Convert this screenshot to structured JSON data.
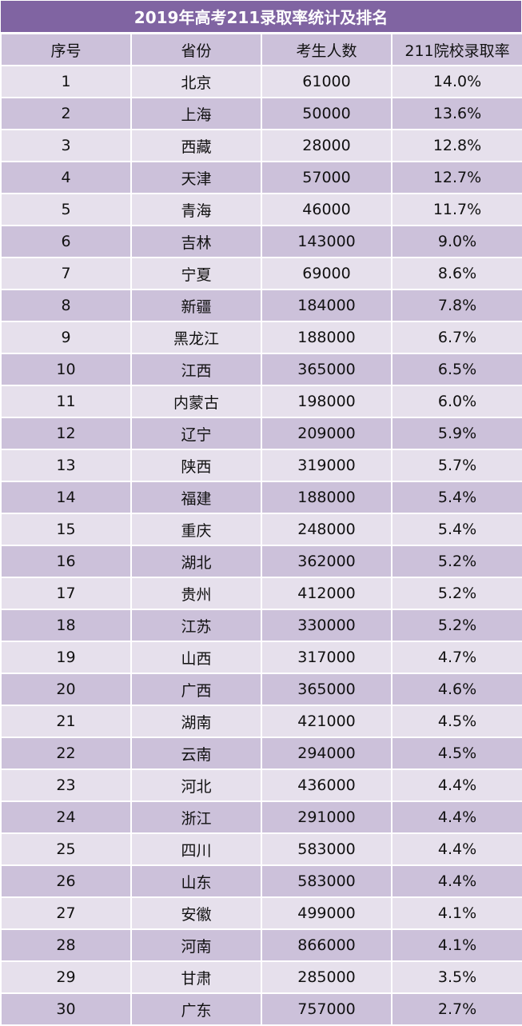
{
  "title": "2019年高考211录取率统计及排名",
  "headers": [
    "序号",
    "省份",
    "考生人数",
    "211院校录取率"
  ],
  "rows": [
    {
      "rank": "1",
      "province": "北京",
      "candidates": "61000",
      "rate": "14.0%"
    },
    {
      "rank": "2",
      "province": "上海",
      "candidates": "50000",
      "rate": "13.6%"
    },
    {
      "rank": "3",
      "province": "西藏",
      "candidates": "28000",
      "rate": "12.8%"
    },
    {
      "rank": "4",
      "province": "天津",
      "candidates": "57000",
      "rate": "12.7%"
    },
    {
      "rank": "5",
      "province": "青海",
      "candidates": "46000",
      "rate": "11.7%"
    },
    {
      "rank": "6",
      "province": "吉林",
      "candidates": "143000",
      "rate": "9.0%"
    },
    {
      "rank": "7",
      "province": "宁夏",
      "candidates": "69000",
      "rate": "8.6%"
    },
    {
      "rank": "8",
      "province": "新疆",
      "candidates": "184000",
      "rate": "7.8%"
    },
    {
      "rank": "9",
      "province": "黑龙江",
      "candidates": "188000",
      "rate": "6.7%"
    },
    {
      "rank": "10",
      "province": "江西",
      "candidates": "365000",
      "rate": "6.5%"
    },
    {
      "rank": "11",
      "province": "内蒙古",
      "candidates": "198000",
      "rate": "6.0%"
    },
    {
      "rank": "12",
      "province": "辽宁",
      "candidates": "209000",
      "rate": "5.9%"
    },
    {
      "rank": "13",
      "province": "陕西",
      "candidates": "319000",
      "rate": "5.7%"
    },
    {
      "rank": "14",
      "province": "福建",
      "candidates": "188000",
      "rate": "5.4%"
    },
    {
      "rank": "15",
      "province": "重庆",
      "candidates": "248000",
      "rate": "5.4%"
    },
    {
      "rank": "16",
      "province": "湖北",
      "candidates": "362000",
      "rate": "5.2%"
    },
    {
      "rank": "17",
      "province": "贵州",
      "candidates": "412000",
      "rate": "5.2%"
    },
    {
      "rank": "18",
      "province": "江苏",
      "candidates": "330000",
      "rate": "5.2%"
    },
    {
      "rank": "19",
      "province": "山西",
      "candidates": "317000",
      "rate": "4.7%"
    },
    {
      "rank": "20",
      "province": "广西",
      "candidates": "365000",
      "rate": "4.6%"
    },
    {
      "rank": "21",
      "province": "湖南",
      "candidates": "421000",
      "rate": "4.5%"
    },
    {
      "rank": "22",
      "province": "云南",
      "candidates": "294000",
      "rate": "4.5%"
    },
    {
      "rank": "23",
      "province": "河北",
      "candidates": "436000",
      "rate": "4.4%"
    },
    {
      "rank": "24",
      "province": "浙江",
      "candidates": "291000",
      "rate": "4.4%"
    },
    {
      "rank": "25",
      "province": "四川",
      "candidates": "583000",
      "rate": "4.4%"
    },
    {
      "rank": "26",
      "province": "山东",
      "candidates": "583000",
      "rate": "4.4%"
    },
    {
      "rank": "27",
      "province": "安徽",
      "candidates": "499000",
      "rate": "4.1%"
    },
    {
      "rank": "28",
      "province": "河南",
      "candidates": "866000",
      "rate": "4.1%"
    },
    {
      "rank": "29",
      "province": "甘肃",
      "candidates": "285000",
      "rate": "3.5%"
    },
    {
      "rank": "30",
      "province": "广东",
      "candidates": "757000",
      "rate": "2.7%"
    }
  ],
  "colors": {
    "title_bg": "#8064a2",
    "header_bg": "#ccc1da",
    "row_odd": "#e6e0ec",
    "row_even": "#ccc1da"
  }
}
